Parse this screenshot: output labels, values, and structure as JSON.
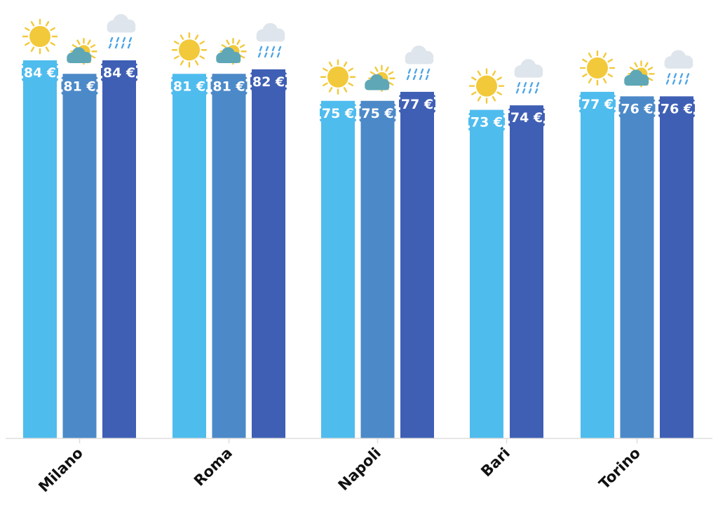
{
  "chart_data": {
    "type": "bar",
    "title": "",
    "xlabel": "",
    "ylabel": "",
    "categories": [
      "Milano",
      "Roma",
      "Napoli",
      "Bari",
      "Torino"
    ],
    "series": [
      {
        "weather": "sunny",
        "icon": "sun-icon",
        "color": "#4fbcee",
        "values": [
          84,
          81,
          75,
          73,
          77
        ],
        "labels": [
          "84 €",
          "81 €",
          "75 €",
          "73 €",
          "77 €"
        ]
      },
      {
        "weather": "partly-cloudy",
        "icon": "partly-cloudy-icon",
        "color": "#4c89c8",
        "values": [
          81,
          81,
          75,
          null,
          76
        ],
        "labels": [
          "81 €",
          "81 €",
          "75 €",
          "",
          "76 €"
        ]
      },
      {
        "weather": "rainy",
        "icon": "rain-cloud-icon",
        "color": "#3f5fb5",
        "values": [
          84,
          82,
          77,
          74,
          76
        ],
        "labels": [
          "84 €",
          "82 €",
          "77 €",
          "74 €",
          "76 €"
        ]
      }
    ],
    "value_unit": "€",
    "grid": false,
    "legend": "none"
  }
}
